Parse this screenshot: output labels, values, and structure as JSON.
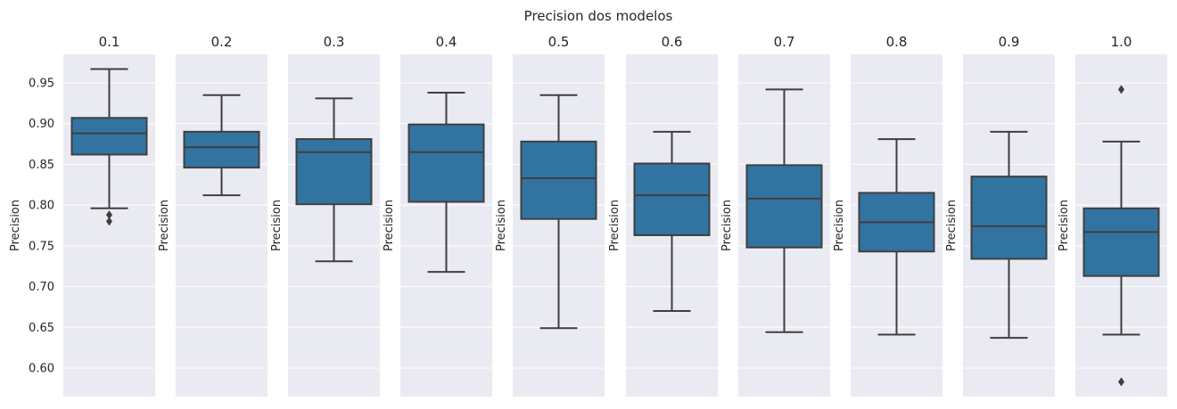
{
  "suptitle": "Precision dos modelos",
  "colors": {
    "panel_bg": "#EAEAF2",
    "grid": "#FFFFFF",
    "box_fill": "#3274A1",
    "line": "#3F3F3F",
    "text": "#262626"
  },
  "chart_data": [
    {
      "type": "box",
      "title": "0.1",
      "ylabel": "Precision",
      "ylim": [
        0.565,
        0.985
      ],
      "yticks": [
        "0.95",
        "0.90",
        "0.85",
        "0.80",
        "0.75",
        "0.70",
        "0.65",
        "0.60"
      ],
      "min": 0.796,
      "q1": 0.862,
      "median": 0.888,
      "q3": 0.907,
      "max": 0.967,
      "outliers": [
        0.788,
        0.78
      ]
    },
    {
      "type": "box",
      "title": "0.2",
      "ylabel": "Precision",
      "ylim": [
        0.565,
        0.985
      ],
      "min": 0.812,
      "q1": 0.846,
      "median": 0.871,
      "q3": 0.89,
      "max": 0.935,
      "outliers": []
    },
    {
      "type": "box",
      "title": "0.3",
      "ylabel": "Precision",
      "ylim": [
        0.565,
        0.985
      ],
      "min": 0.731,
      "q1": 0.801,
      "median": 0.865,
      "q3": 0.881,
      "max": 0.931,
      "outliers": []
    },
    {
      "type": "box",
      "title": "0.4",
      "ylabel": "Precision",
      "ylim": [
        0.565,
        0.985
      ],
      "min": 0.718,
      "q1": 0.804,
      "median": 0.865,
      "q3": 0.899,
      "max": 0.938,
      "outliers": []
    },
    {
      "type": "box",
      "title": "0.5",
      "ylabel": "Precision",
      "ylim": [
        0.565,
        0.985
      ],
      "min": 0.649,
      "q1": 0.783,
      "median": 0.833,
      "q3": 0.878,
      "max": 0.935,
      "outliers": []
    },
    {
      "type": "box",
      "title": "0.6",
      "ylabel": "Precision",
      "ylim": [
        0.565,
        0.985
      ],
      "min": 0.67,
      "q1": 0.763,
      "median": 0.812,
      "q3": 0.851,
      "max": 0.89,
      "outliers": []
    },
    {
      "type": "box",
      "title": "0.7",
      "ylabel": "Precision",
      "ylim": [
        0.565,
        0.985
      ],
      "min": 0.644,
      "q1": 0.748,
      "median": 0.808,
      "q3": 0.849,
      "max": 0.942,
      "outliers": []
    },
    {
      "type": "box",
      "title": "0.8",
      "ylabel": "Precision",
      "ylim": [
        0.565,
        0.985
      ],
      "min": 0.641,
      "q1": 0.743,
      "median": 0.779,
      "q3": 0.815,
      "max": 0.881,
      "outliers": []
    },
    {
      "type": "box",
      "title": "0.9",
      "ylabel": "Precision",
      "ylim": [
        0.565,
        0.985
      ],
      "min": 0.637,
      "q1": 0.734,
      "median": 0.774,
      "q3": 0.835,
      "max": 0.89,
      "outliers": []
    },
    {
      "type": "box",
      "title": "1.0",
      "ylabel": "Precision",
      "ylim": [
        0.565,
        0.985
      ],
      "min": 0.641,
      "q1": 0.713,
      "median": 0.767,
      "q3": 0.796,
      "max": 0.878,
      "outliers": [
        0.942,
        0.583
      ]
    }
  ]
}
